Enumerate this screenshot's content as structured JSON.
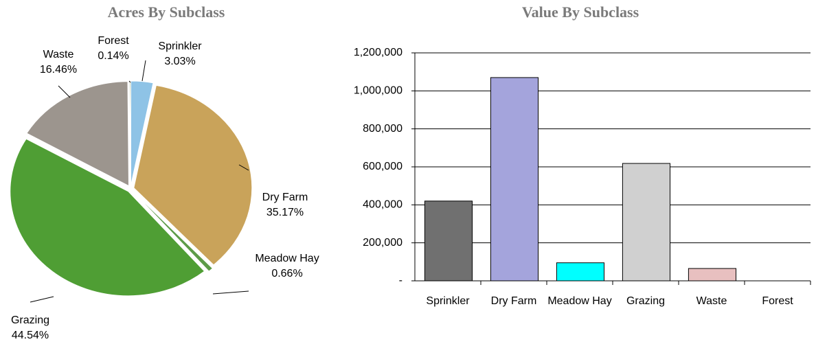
{
  "chart_data": [
    {
      "type": "pie",
      "title": "Acres By Subclass",
      "categories": [
        "Sprinkler",
        "Dry Farm",
        "Meadow Hay",
        "Grazing",
        "Waste",
        "Forest"
      ],
      "values": [
        3.03,
        35.17,
        0.66,
        44.54,
        16.46,
        0.14
      ],
      "value_labels": [
        "3.03%",
        "35.17%",
        "0.66%",
        "44.54%",
        "16.46%",
        "0.14%"
      ],
      "colors": [
        "#8ec3e6",
        "#c9a35a",
        "#5d9b48",
        "#4f9e34",
        "#9c958e",
        "#7f9a72"
      ]
    },
    {
      "type": "bar",
      "title": "Value By Subclass",
      "categories": [
        "Sprinkler",
        "Dry Farm",
        "Meadow Hay",
        "Grazing",
        "Waste",
        "Forest"
      ],
      "values": [
        420000,
        1070000,
        95000,
        618000,
        65000,
        0
      ],
      "colors": [
        "#707070",
        "#a4a4dc",
        "#00ffff",
        "#d0d0d0",
        "#e8c0c0",
        "#ffffff"
      ],
      "ylim": [
        0,
        1200000
      ],
      "yticks": [
        {
          "value": 0,
          "label": "-"
        },
        {
          "value": 200000,
          "label": "200,000"
        },
        {
          "value": 400000,
          "label": "400,000"
        },
        {
          "value": 600000,
          "label": "600,000"
        },
        {
          "value": 800000,
          "label": "800,000"
        },
        {
          "value": 1000000,
          "label": "1,000,000"
        },
        {
          "value": 1200000,
          "label": "1,200,000"
        }
      ],
      "grid": true
    }
  ]
}
